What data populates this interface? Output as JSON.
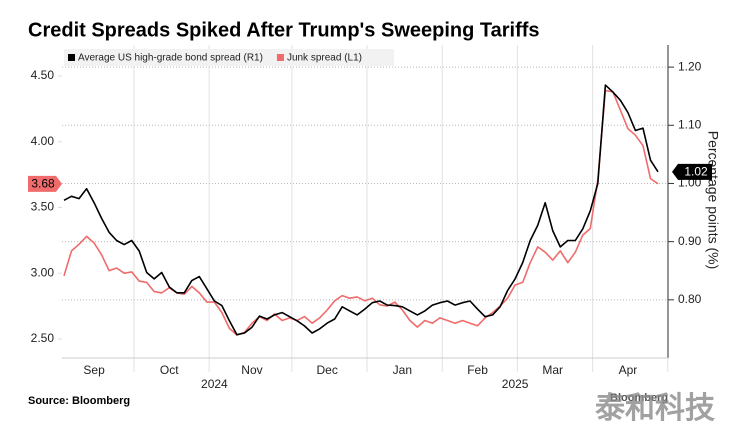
{
  "chart_data": {
    "type": "line",
    "title": "Credit Spreads Spiked After Trump's Sweeping Tariffs",
    "y2_label": "Percentage points (%)",
    "source": "Source: Bloomberg",
    "watermarks": [
      "Bloomberg",
      "泰和科技"
    ],
    "categories": [
      null,
      null,
      null,
      null,
      "Sep",
      null,
      null,
      null,
      null,
      null,
      null,
      null,
      null,
      null,
      "Oct",
      null,
      null,
      null,
      null,
      null,
      null,
      null,
      null,
      null,
      null,
      "Nov",
      null,
      null,
      null,
      null,
      null,
      null,
      null,
      null,
      null,
      "Dec",
      null,
      null,
      null,
      null,
      null,
      null,
      null,
      null,
      null,
      "Jan",
      null,
      null,
      null,
      null,
      null,
      null,
      null,
      null,
      null,
      "Feb",
      null,
      null,
      null,
      null,
      null,
      null,
      null,
      null,
      null,
      "Mar",
      null,
      null,
      null,
      null,
      null,
      null,
      null,
      null,
      null,
      "Apr",
      null,
      null,
      null,
      null
    ],
    "year_labels": [
      null,
      null,
      null,
      null,
      null,
      null,
      null,
      null,
      null,
      null,
      null,
      null,
      null,
      null,
      null,
      null,
      null,
      null,
      null,
      null,
      "2024",
      null,
      null,
      null,
      null,
      null,
      null,
      null,
      null,
      null,
      null,
      null,
      null,
      null,
      null,
      null,
      null,
      null,
      null,
      null,
      null,
      null,
      null,
      null,
      null,
      null,
      null,
      null,
      null,
      null,
      null,
      null,
      null,
      null,
      null,
      null,
      null,
      null,
      null,
      null,
      "2025",
      null,
      null,
      null,
      null,
      null,
      null,
      null,
      null,
      null,
      null,
      null,
      null,
      null,
      null,
      null,
      null,
      null,
      null,
      null
    ],
    "ylim": [
      2.355,
      4.736
    ],
    "yticks": [
      {
        "value": 2.5,
        "label": "2.50"
      },
      {
        "value": 3.0,
        "label": "3.00"
      },
      {
        "value": 3.5,
        "label": "3.50"
      },
      {
        "value": 4.0,
        "label": "4.00"
      },
      {
        "value": 4.5,
        "label": "4.50"
      }
    ],
    "y2lim": [
      0.7,
      1.238
    ],
    "y2ticks": [
      {
        "value": 0.8,
        "label": "0.80"
      },
      {
        "value": 0.9,
        "label": "0.90"
      },
      {
        "value": 1.0,
        "label": "1.00"
      },
      {
        "value": 1.1,
        "label": "1.10"
      },
      {
        "value": 1.2,
        "label": "1.20"
      }
    ],
    "grid": true,
    "series": [
      {
        "name": "Average US high-grade bond spread (R1)",
        "color": "#000000",
        "axis": "y2",
        "end_label": "1.02",
        "values": [
          0.971,
          0.978,
          0.974,
          0.991,
          0.967,
          0.94,
          0.916,
          0.902,
          0.895,
          0.902,
          0.884,
          0.847,
          0.836,
          0.847,
          0.822,
          0.812,
          0.812,
          0.833,
          0.84,
          0.819,
          0.798,
          0.79,
          0.764,
          0.74,
          0.743,
          0.753,
          0.772,
          0.767,
          0.774,
          0.778,
          0.771,
          0.764,
          0.755,
          0.743,
          0.75,
          0.76,
          0.767,
          0.788,
          0.781,
          0.774,
          0.784,
          0.795,
          0.798,
          0.791,
          0.79,
          0.788,
          0.781,
          0.774,
          0.781,
          0.791,
          0.795,
          0.798,
          0.791,
          0.795,
          0.798,
          0.784,
          0.771,
          0.774,
          0.788,
          0.816,
          0.836,
          0.864,
          0.902,
          0.928,
          0.967,
          0.919,
          0.891,
          0.902,
          0.902,
          0.922,
          0.953,
          1.0,
          1.169,
          1.157,
          1.143,
          1.122,
          1.091,
          1.095,
          1.04,
          1.02
        ]
      },
      {
        "name": "Junk spread (L1)",
        "color": "#f06b6b",
        "axis": "y",
        "end_label": "3.68",
        "values": [
          2.98,
          3.17,
          3.22,
          3.28,
          3.23,
          3.14,
          3.02,
          3.04,
          3.0,
          3.01,
          2.94,
          2.93,
          2.86,
          2.85,
          2.89,
          2.85,
          2.84,
          2.9,
          2.85,
          2.78,
          2.78,
          2.7,
          2.58,
          2.53,
          2.55,
          2.62,
          2.67,
          2.64,
          2.69,
          2.64,
          2.66,
          2.64,
          2.67,
          2.62,
          2.66,
          2.72,
          2.79,
          2.83,
          2.81,
          2.82,
          2.79,
          2.81,
          2.76,
          2.75,
          2.78,
          2.72,
          2.64,
          2.59,
          2.64,
          2.62,
          2.66,
          2.64,
          2.62,
          2.64,
          2.62,
          2.6,
          2.66,
          2.7,
          2.75,
          2.81,
          2.91,
          2.93,
          3.08,
          3.2,
          3.16,
          3.1,
          3.17,
          3.08,
          3.16,
          3.29,
          3.34,
          3.71,
          4.39,
          4.38,
          4.24,
          4.1,
          4.05,
          3.97,
          3.72,
          3.68
        ]
      }
    ]
  }
}
